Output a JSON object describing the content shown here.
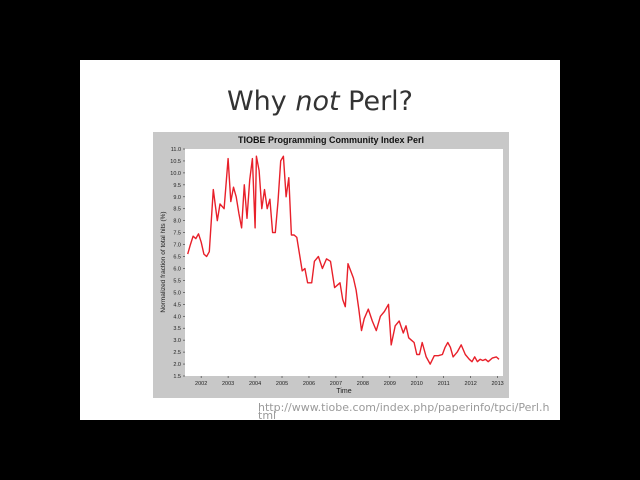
{
  "slide": {
    "title_prefix": "Why ",
    "title_emphasis": "not",
    "title_suffix": " Perl?",
    "source_url": "http://www.tiobe.com/index.php/paperinfo/tpci/Perl.h",
    "source_url_wrap": "tml"
  },
  "chart_data": {
    "type": "line",
    "title": "TIOBE Programming Community Index Perl",
    "xlabel": "Time",
    "ylabel": "Normalized fraction of total hits (%)",
    "ylim": [
      1.5,
      11.0
    ],
    "xlim": [
      2001.4,
      2013.2
    ],
    "yticks": [
      "1.5",
      "2.0",
      "2.5",
      "3.0",
      "3.5",
      "4.0",
      "4.5",
      "5.0",
      "5.5",
      "6.0",
      "6.5",
      "7.0",
      "7.5",
      "8.0",
      "8.5",
      "9.0",
      "9.5",
      "10.0",
      "10.5",
      "11.0"
    ],
    "xticks": [
      "2002",
      "2003",
      "2004",
      "2005",
      "2006",
      "2007",
      "2008",
      "2009",
      "2010",
      "2011",
      "2012",
      "2013"
    ],
    "grid": false,
    "line_color": "#e8202a",
    "series": [
      {
        "x": [
          2001.5,
          2001.6,
          2001.7,
          2001.8,
          2001.9,
          2002.0,
          2002.1,
          2002.2,
          2002.3,
          2002.45,
          2002.6,
          2002.7,
          2002.85,
          2003.0,
          2003.1,
          2003.2,
          2003.3,
          2003.4,
          2003.5,
          2003.6,
          2003.7,
          2003.8,
          2003.9,
          2004.0,
          2004.05,
          2004.15,
          2004.25,
          2004.35,
          2004.45,
          2004.55,
          2004.65,
          2004.75,
          2004.85,
          2004.95,
          2005.05,
          2005.15,
          2005.25,
          2005.35,
          2005.45,
          2005.55,
          2005.65,
          2005.75,
          2005.85,
          2005.95,
          2006.1,
          2006.2,
          2006.35,
          2006.5,
          2006.65,
          2006.8,
          2006.95,
          2007.05,
          2007.15,
          2007.25,
          2007.35,
          2007.45,
          2007.55,
          2007.65,
          2007.75,
          2007.85,
          2007.95,
          2008.05,
          2008.2,
          2008.35,
          2008.5,
          2008.65,
          2008.8,
          2008.95,
          2009.05,
          2009.2,
          2009.35,
          2009.5,
          2009.6,
          2009.7,
          2009.8,
          2009.9,
          2010.0,
          2010.1,
          2010.2,
          2010.35,
          2010.5,
          2010.65,
          2010.8,
          2010.95,
          2011.05,
          2011.15,
          2011.25,
          2011.35,
          2011.5,
          2011.65,
          2011.8,
          2011.95,
          2012.05,
          2012.15,
          2012.25,
          2012.35,
          2012.45,
          2012.55,
          2012.65,
          2012.8,
          2012.95,
          2013.05
        ],
        "y": [
          6.6,
          7.0,
          7.35,
          7.25,
          7.45,
          7.1,
          6.6,
          6.5,
          6.7,
          9.3,
          8.0,
          8.7,
          8.5,
          10.6,
          8.8,
          9.4,
          9.0,
          8.3,
          7.7,
          9.5,
          8.1,
          9.7,
          10.6,
          7.7,
          10.7,
          10.1,
          8.5,
          9.3,
          8.5,
          8.9,
          7.5,
          7.5,
          8.8,
          10.5,
          10.7,
          9.0,
          9.8,
          7.4,
          7.4,
          7.3,
          6.6,
          5.9,
          6.0,
          5.4,
          5.4,
          6.3,
          6.5,
          6.0,
          6.4,
          6.3,
          5.2,
          5.3,
          5.4,
          4.7,
          4.4,
          6.2,
          5.9,
          5.6,
          5.1,
          4.3,
          3.4,
          3.9,
          4.3,
          3.8,
          3.4,
          4.0,
          4.2,
          4.5,
          2.8,
          3.6,
          3.8,
          3.3,
          3.6,
          3.1,
          3.0,
          2.9,
          2.4,
          2.4,
          2.9,
          2.3,
          2.0,
          2.35,
          2.35,
          2.4,
          2.7,
          2.9,
          2.7,
          2.3,
          2.5,
          2.8,
          2.4,
          2.2,
          2.1,
          2.3,
          2.1,
          2.2,
          2.15,
          2.2,
          2.1,
          2.25,
          2.3,
          2.2
        ]
      }
    ]
  }
}
